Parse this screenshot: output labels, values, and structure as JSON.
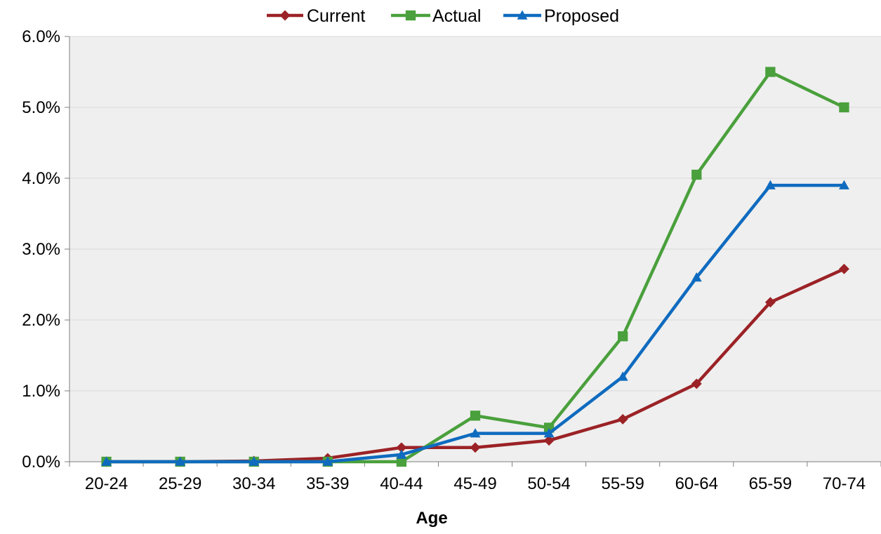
{
  "chart_data": {
    "type": "line",
    "title": "",
    "xlabel": "Age",
    "ylabel": "",
    "categories": [
      "20-24",
      "25-29",
      "30-34",
      "35-39",
      "40-44",
      "45-49",
      "50-54",
      "55-59",
      "60-64",
      "65-59",
      "70-74"
    ],
    "series": [
      {
        "name": "Current",
        "color": "#9b2226",
        "marker": "diamond",
        "values": [
          0.0,
          0.0,
          0.01,
          0.05,
          0.2,
          0.2,
          0.3,
          0.6,
          1.1,
          2.25,
          2.72
        ]
      },
      {
        "name": "Actual",
        "color": "#4aa03c",
        "marker": "square",
        "values": [
          0.0,
          0.0,
          0.0,
          0.0,
          0.0,
          0.65,
          0.48,
          1.77,
          4.05,
          5.5,
          5.0
        ]
      },
      {
        "name": "Proposed",
        "color": "#0f6bbf",
        "marker": "triangle",
        "values": [
          0.0,
          0.0,
          0.0,
          0.0,
          0.1,
          0.4,
          0.4,
          1.2,
          2.6,
          3.9,
          3.9
        ]
      }
    ],
    "ylim": [
      0,
      6
    ],
    "yticks": [
      0,
      1,
      2,
      3,
      4,
      5,
      6
    ],
    "ytick_labels": [
      "0.0%",
      "1.0%",
      "2.0%",
      "3.0%",
      "4.0%",
      "5.0%",
      "6.0%"
    ],
    "grid": true,
    "legend_position": "top-center",
    "plot_background": "#efefef",
    "grid_color": "#d9d9d9"
  }
}
